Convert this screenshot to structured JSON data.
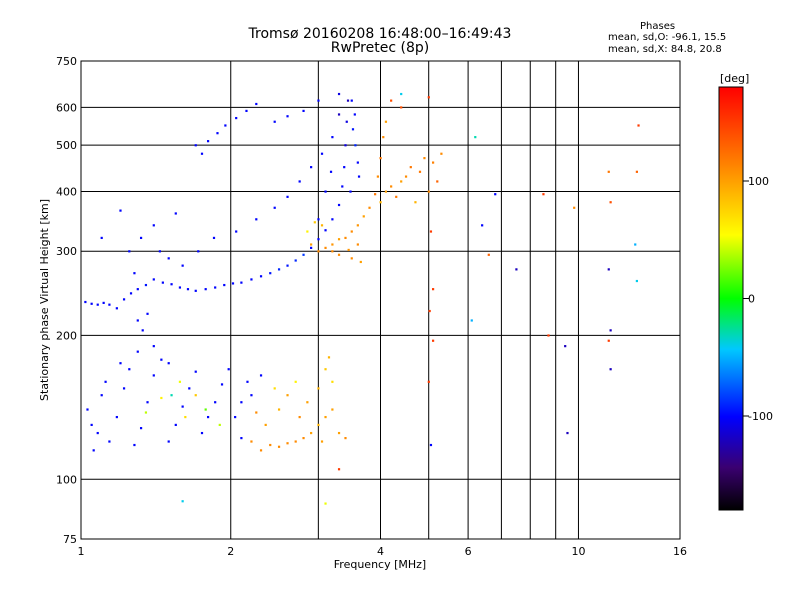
{
  "header": {
    "title_line1": "Tromsø 20160208 16:48:00–16:49:43",
    "title_line2": "RwPretec (8p)",
    "stats_title": "Phases",
    "stats_o": "mean, sd,O: -96.1, 15.5",
    "stats_x": "mean, sd,X: 84.8, 20.8"
  },
  "chart_data": {
    "type": "scatter",
    "xlabel": "Frequency [MHz]",
    "ylabel": "Stationary phase Virtual Height [km]",
    "x_scale": "log",
    "y_scale": "log",
    "xlim": [
      1,
      16
    ],
    "ylim": [
      75,
      750
    ],
    "x_ticks": [
      {
        "value": 1,
        "label": "1"
      },
      {
        "value": 2,
        "label": "2"
      },
      {
        "value": 4,
        "label": "4"
      },
      {
        "value": 6,
        "label": "6"
      },
      {
        "value": 10,
        "label": "10"
      },
      {
        "value": 16,
        "label": "16"
      }
    ],
    "x_minor_gridlines": [
      3,
      5,
      7,
      8,
      9
    ],
    "y_ticks": [
      {
        "value": 75,
        "label": "75"
      },
      {
        "value": 100,
        "label": "100"
      },
      {
        "value": 200,
        "label": "200"
      },
      {
        "value": 300,
        "label": "300"
      },
      {
        "value": 400,
        "label": "400"
      },
      {
        "value": 500,
        "label": "500"
      },
      {
        "value": 600,
        "label": "600"
      },
      {
        "value": 750,
        "label": "750"
      }
    ],
    "grid": true,
    "colorbar": {
      "label": "[deg]",
      "range": [
        -180,
        180
      ],
      "ticks": [
        {
          "value": 100,
          "label": "100"
        },
        {
          "value": 0,
          "label": "0"
        },
        {
          "value": -100,
          "label": "-100"
        }
      ]
    },
    "points": [
      {
        "x": 1.02,
        "y": 235,
        "phase": -100
      },
      {
        "x": 1.05,
        "y": 233,
        "phase": -100
      },
      {
        "x": 1.08,
        "y": 232,
        "phase": -100
      },
      {
        "x": 1.11,
        "y": 234,
        "phase": -100
      },
      {
        "x": 1.14,
        "y": 232,
        "phase": -100
      },
      {
        "x": 1.18,
        "y": 228,
        "phase": -100
      },
      {
        "x": 1.22,
        "y": 238,
        "phase": -100
      },
      {
        "x": 1.26,
        "y": 245,
        "phase": -100
      },
      {
        "x": 1.3,
        "y": 250,
        "phase": -100
      },
      {
        "x": 1.35,
        "y": 255,
        "phase": -95
      },
      {
        "x": 1.4,
        "y": 262,
        "phase": -100
      },
      {
        "x": 1.46,
        "y": 258,
        "phase": -100
      },
      {
        "x": 1.52,
        "y": 256,
        "phase": -100
      },
      {
        "x": 1.58,
        "y": 252,
        "phase": -100
      },
      {
        "x": 1.64,
        "y": 250,
        "phase": -100
      },
      {
        "x": 1.7,
        "y": 248,
        "phase": -100
      },
      {
        "x": 1.78,
        "y": 250,
        "phase": -100
      },
      {
        "x": 1.86,
        "y": 252,
        "phase": -100
      },
      {
        "x": 1.94,
        "y": 255,
        "phase": -100
      },
      {
        "x": 2.02,
        "y": 257,
        "phase": -100
      },
      {
        "x": 2.1,
        "y": 258,
        "phase": -100
      },
      {
        "x": 2.2,
        "y": 262,
        "phase": -100
      },
      {
        "x": 2.3,
        "y": 266,
        "phase": -100
      },
      {
        "x": 2.4,
        "y": 270,
        "phase": -95
      },
      {
        "x": 2.5,
        "y": 275,
        "phase": -90
      },
      {
        "x": 2.6,
        "y": 280,
        "phase": -95
      },
      {
        "x": 2.7,
        "y": 287,
        "phase": -90
      },
      {
        "x": 2.8,
        "y": 295,
        "phase": -85
      },
      {
        "x": 2.9,
        "y": 305,
        "phase": -100
      },
      {
        "x": 3.0,
        "y": 318,
        "phase": -100
      },
      {
        "x": 3.1,
        "y": 332,
        "phase": -100
      },
      {
        "x": 3.2,
        "y": 350,
        "phase": -100
      },
      {
        "x": 3.3,
        "y": 375,
        "phase": -100
      },
      {
        "x": 3.35,
        "y": 410,
        "phase": -100
      },
      {
        "x": 3.38,
        "y": 450,
        "phase": -100
      },
      {
        "x": 3.4,
        "y": 500,
        "phase": -110
      },
      {
        "x": 3.42,
        "y": 560,
        "phase": -110
      },
      {
        "x": 3.44,
        "y": 620,
        "phase": -120
      },
      {
        "x": 1.3,
        "y": 215,
        "phase": -100
      },
      {
        "x": 1.33,
        "y": 205,
        "phase": -100
      },
      {
        "x": 1.36,
        "y": 222,
        "phase": -100
      },
      {
        "x": 1.28,
        "y": 270,
        "phase": -100
      },
      {
        "x": 1.25,
        "y": 300,
        "phase": -100
      },
      {
        "x": 1.32,
        "y": 320,
        "phase": -100
      },
      {
        "x": 1.44,
        "y": 300,
        "phase": -100
      },
      {
        "x": 1.5,
        "y": 290,
        "phase": -100
      },
      {
        "x": 1.6,
        "y": 280,
        "phase": -100
      },
      {
        "x": 1.72,
        "y": 300,
        "phase": -100
      },
      {
        "x": 1.85,
        "y": 320,
        "phase": -100
      },
      {
        "x": 2.05,
        "y": 330,
        "phase": -100
      },
      {
        "x": 2.25,
        "y": 350,
        "phase": -100
      },
      {
        "x": 2.45,
        "y": 370,
        "phase": -100
      },
      {
        "x": 2.6,
        "y": 390,
        "phase": -100
      },
      {
        "x": 2.75,
        "y": 420,
        "phase": -100
      },
      {
        "x": 2.9,
        "y": 450,
        "phase": -100
      },
      {
        "x": 3.05,
        "y": 480,
        "phase": -100
      },
      {
        "x": 3.2,
        "y": 520,
        "phase": -100
      },
      {
        "x": 3.3,
        "y": 580,
        "phase": -120
      },
      {
        "x": 1.1,
        "y": 320,
        "phase": -100
      },
      {
        "x": 1.2,
        "y": 365,
        "phase": -100
      },
      {
        "x": 1.4,
        "y": 340,
        "phase": -100
      },
      {
        "x": 1.55,
        "y": 360,
        "phase": -100
      },
      {
        "x": 1.7,
        "y": 500,
        "phase": -100
      },
      {
        "x": 1.75,
        "y": 480,
        "phase": -100
      },
      {
        "x": 1.8,
        "y": 510,
        "phase": -100
      },
      {
        "x": 1.88,
        "y": 530,
        "phase": -100
      },
      {
        "x": 1.95,
        "y": 550,
        "phase": -100
      },
      {
        "x": 2.05,
        "y": 570,
        "phase": -100
      },
      {
        "x": 2.15,
        "y": 590,
        "phase": -100
      },
      {
        "x": 2.25,
        "y": 610,
        "phase": -100
      },
      {
        "x": 2.45,
        "y": 560,
        "phase": -100
      },
      {
        "x": 2.6,
        "y": 575,
        "phase": -100
      },
      {
        "x": 2.8,
        "y": 590,
        "phase": -100
      },
      {
        "x": 3.0,
        "y": 620,
        "phase": -100
      },
      {
        "x": 3.3,
        "y": 640,
        "phase": -110
      },
      {
        "x": 3.5,
        "y": 620,
        "phase": -100
      },
      {
        "x": 3.55,
        "y": 580,
        "phase": -100
      },
      {
        "x": 3.52,
        "y": 540,
        "phase": -95
      },
      {
        "x": 3.56,
        "y": 500,
        "phase": -90
      },
      {
        "x": 3.6,
        "y": 460,
        "phase": -100
      },
      {
        "x": 3.62,
        "y": 430,
        "phase": -100
      },
      {
        "x": 3.48,
        "y": 400,
        "phase": -100
      },
      {
        "x": 3.0,
        "y": 350,
        "phase": -100
      },
      {
        "x": 3.1,
        "y": 400,
        "phase": -100
      },
      {
        "x": 3.18,
        "y": 440,
        "phase": -100
      },
      {
        "x": 2.85,
        "y": 330,
        "phase": 60
      },
      {
        "x": 2.95,
        "y": 345,
        "phase": 80
      },
      {
        "x": 3.05,
        "y": 340,
        "phase": 90
      },
      {
        "x": 2.9,
        "y": 310,
        "phase": 100
      },
      {
        "x": 3.0,
        "y": 300,
        "phase": 110
      },
      {
        "x": 3.1,
        "y": 305,
        "phase": 110
      },
      {
        "x": 3.2,
        "y": 310,
        "phase": 105
      },
      {
        "x": 3.3,
        "y": 318,
        "phase": 100
      },
      {
        "x": 3.4,
        "y": 320,
        "phase": 110
      },
      {
        "x": 3.5,
        "y": 330,
        "phase": 110
      },
      {
        "x": 3.6,
        "y": 340,
        "phase": 105
      },
      {
        "x": 3.7,
        "y": 355,
        "phase": 100
      },
      {
        "x": 3.8,
        "y": 370,
        "phase": 110
      },
      {
        "x": 3.9,
        "y": 395,
        "phase": 120
      },
      {
        "x": 3.95,
        "y": 430,
        "phase": 110
      },
      {
        "x": 4.0,
        "y": 470,
        "phase": 120
      },
      {
        "x": 4.05,
        "y": 520,
        "phase": 110
      },
      {
        "x": 4.1,
        "y": 560,
        "phase": 100
      },
      {
        "x": 4.0,
        "y": 380,
        "phase": 90
      },
      {
        "x": 4.1,
        "y": 400,
        "phase": 100
      },
      {
        "x": 4.2,
        "y": 410,
        "phase": 110
      },
      {
        "x": 4.3,
        "y": 390,
        "phase": 120
      },
      {
        "x": 4.4,
        "y": 420,
        "phase": 100
      },
      {
        "x": 4.5,
        "y": 430,
        "phase": 110
      },
      {
        "x": 4.6,
        "y": 450,
        "phase": 120
      },
      {
        "x": 4.8,
        "y": 440,
        "phase": 120
      },
      {
        "x": 4.9,
        "y": 470,
        "phase": 110
      },
      {
        "x": 5.1,
        "y": 460,
        "phase": 115
      },
      {
        "x": 5.2,
        "y": 420,
        "phase": 130
      },
      {
        "x": 5.3,
        "y": 480,
        "phase": 110
      },
      {
        "x": 5.0,
        "y": 400,
        "phase": 110
      },
      {
        "x": 4.7,
        "y": 380,
        "phase": 90
      },
      {
        "x": 3.2,
        "y": 300,
        "phase": 110
      },
      {
        "x": 3.3,
        "y": 295,
        "phase": 110
      },
      {
        "x": 3.45,
        "y": 302,
        "phase": 105
      },
      {
        "x": 3.6,
        "y": 310,
        "phase": 110
      },
      {
        "x": 3.65,
        "y": 285,
        "phase": 100
      },
      {
        "x": 3.5,
        "y": 290,
        "phase": 110
      },
      {
        "x": 1.03,
        "y": 140,
        "phase": -100
      },
      {
        "x": 1.05,
        "y": 130,
        "phase": -100
      },
      {
        "x": 1.06,
        "y": 115,
        "phase": -100
      },
      {
        "x": 1.08,
        "y": 125,
        "phase": -100
      },
      {
        "x": 1.1,
        "y": 150,
        "phase": -100
      },
      {
        "x": 1.12,
        "y": 160,
        "phase": -100
      },
      {
        "x": 1.14,
        "y": 120,
        "phase": -100
      },
      {
        "x": 1.18,
        "y": 135,
        "phase": -100
      },
      {
        "x": 1.22,
        "y": 155,
        "phase": -100
      },
      {
        "x": 1.25,
        "y": 170,
        "phase": -100
      },
      {
        "x": 1.28,
        "y": 118,
        "phase": -100
      },
      {
        "x": 1.32,
        "y": 128,
        "phase": -100
      },
      {
        "x": 1.36,
        "y": 145,
        "phase": -100
      },
      {
        "x": 1.4,
        "y": 165,
        "phase": -100
      },
      {
        "x": 1.45,
        "y": 178,
        "phase": -100
      },
      {
        "x": 1.5,
        "y": 120,
        "phase": -100
      },
      {
        "x": 1.55,
        "y": 130,
        "phase": -100
      },
      {
        "x": 1.6,
        "y": 142,
        "phase": -100
      },
      {
        "x": 1.65,
        "y": 155,
        "phase": -100
      },
      {
        "x": 1.7,
        "y": 168,
        "phase": -100
      },
      {
        "x": 1.75,
        "y": 125,
        "phase": -100
      },
      {
        "x": 1.8,
        "y": 135,
        "phase": -100
      },
      {
        "x": 1.86,
        "y": 145,
        "phase": -100
      },
      {
        "x": 1.92,
        "y": 158,
        "phase": -100
      },
      {
        "x": 1.98,
        "y": 170,
        "phase": -100
      },
      {
        "x": 2.04,
        "y": 135,
        "phase": -100
      },
      {
        "x": 2.1,
        "y": 145,
        "phase": -100
      },
      {
        "x": 2.16,
        "y": 160,
        "phase": -100
      },
      {
        "x": 1.2,
        "y": 175,
        "phase": -100
      },
      {
        "x": 1.3,
        "y": 185,
        "phase": -100
      },
      {
        "x": 1.4,
        "y": 190,
        "phase": -100
      },
      {
        "x": 1.5,
        "y": 175,
        "phase": -100
      },
      {
        "x": 1.35,
        "y": 138,
        "phase": 40
      },
      {
        "x": 1.45,
        "y": 148,
        "phase": 60
      },
      {
        "x": 1.58,
        "y": 160,
        "phase": 50
      },
      {
        "x": 1.7,
        "y": 150,
        "phase": 80
      },
      {
        "x": 1.78,
        "y": 140,
        "phase": 20
      },
      {
        "x": 1.9,
        "y": 130,
        "phase": 40
      },
      {
        "x": 1.62,
        "y": 135,
        "phase": 70
      },
      {
        "x": 1.52,
        "y": 150,
        "phase": -30
      },
      {
        "x": 2.2,
        "y": 120,
        "phase": 110
      },
      {
        "x": 2.3,
        "y": 115,
        "phase": 110
      },
      {
        "x": 2.4,
        "y": 118,
        "phase": 110
      },
      {
        "x": 2.5,
        "y": 117,
        "phase": 110
      },
      {
        "x": 2.6,
        "y": 119,
        "phase": 110
      },
      {
        "x": 2.7,
        "y": 120,
        "phase": 110
      },
      {
        "x": 2.8,
        "y": 122,
        "phase": 110
      },
      {
        "x": 2.9,
        "y": 125,
        "phase": 100
      },
      {
        "x": 3.0,
        "y": 130,
        "phase": 90
      },
      {
        "x": 3.1,
        "y": 135,
        "phase": 100
      },
      {
        "x": 3.2,
        "y": 140,
        "phase": 100
      },
      {
        "x": 2.35,
        "y": 130,
        "phase": 100
      },
      {
        "x": 2.5,
        "y": 140,
        "phase": 90
      },
      {
        "x": 2.6,
        "y": 150,
        "phase": 100
      },
      {
        "x": 2.75,
        "y": 135,
        "phase": 110
      },
      {
        "x": 2.85,
        "y": 145,
        "phase": 100
      },
      {
        "x": 3.0,
        "y": 155,
        "phase": 90
      },
      {
        "x": 3.1,
        "y": 170,
        "phase": 80
      },
      {
        "x": 3.15,
        "y": 180,
        "phase": 90
      },
      {
        "x": 2.45,
        "y": 155,
        "phase": 70
      },
      {
        "x": 2.7,
        "y": 160,
        "phase": 60
      },
      {
        "x": 3.2,
        "y": 160,
        "phase": 70
      },
      {
        "x": 2.25,
        "y": 138,
        "phase": 110
      },
      {
        "x": 3.05,
        "y": 120,
        "phase": 100
      },
      {
        "x": 3.3,
        "y": 125,
        "phase": 100
      },
      {
        "x": 3.4,
        "y": 122,
        "phase": 110
      },
      {
        "x": 2.1,
        "y": 122,
        "phase": -100
      },
      {
        "x": 2.2,
        "y": 150,
        "phase": -100
      },
      {
        "x": 2.3,
        "y": 165,
        "phase": -100
      },
      {
        "x": 4.2,
        "y": 620,
        "phase": 140
      },
      {
        "x": 4.4,
        "y": 600,
        "phase": 140
      },
      {
        "x": 5.0,
        "y": 630,
        "phase": 150
      },
      {
        "x": 5.05,
        "y": 330,
        "phase": 150
      },
      {
        "x": 5.1,
        "y": 250,
        "phase": 150
      },
      {
        "x": 5.02,
        "y": 225,
        "phase": 150
      },
      {
        "x": 5.1,
        "y": 195,
        "phase": 150
      },
      {
        "x": 5.0,
        "y": 160,
        "phase": 150
      },
      {
        "x": 5.05,
        "y": 118,
        "phase": -100
      },
      {
        "x": 6.2,
        "y": 520,
        "phase": -30
      },
      {
        "x": 6.4,
        "y": 340,
        "phase": -100
      },
      {
        "x": 6.6,
        "y": 295,
        "phase": 130
      },
      {
        "x": 6.1,
        "y": 215,
        "phase": -50
      },
      {
        "x": 6.8,
        "y": 395,
        "phase": -100
      },
      {
        "x": 7.5,
        "y": 275,
        "phase": -120
      },
      {
        "x": 8.5,
        "y": 395,
        "phase": 150
      },
      {
        "x": 8.7,
        "y": 200,
        "phase": 150
      },
      {
        "x": 9.4,
        "y": 190,
        "phase": -120
      },
      {
        "x": 9.8,
        "y": 370,
        "phase": 110
      },
      {
        "x": 9.5,
        "y": 125,
        "phase": -120
      },
      {
        "x": 11.5,
        "y": 440,
        "phase": 120
      },
      {
        "x": 11.6,
        "y": 380,
        "phase": 140
      },
      {
        "x": 11.5,
        "y": 275,
        "phase": -120
      },
      {
        "x": 11.6,
        "y": 205,
        "phase": -120
      },
      {
        "x": 11.5,
        "y": 195,
        "phase": 150
      },
      {
        "x": 11.6,
        "y": 170,
        "phase": -120
      },
      {
        "x": 13.2,
        "y": 550,
        "phase": 150
      },
      {
        "x": 13.1,
        "y": 440,
        "phase": 130
      },
      {
        "x": 13.0,
        "y": 310,
        "phase": -50
      },
      {
        "x": 13.1,
        "y": 260,
        "phase": -40
      },
      {
        "x": 4.4,
        "y": 640,
        "phase": -40
      },
      {
        "x": 3.3,
        "y": 105,
        "phase": 150
      },
      {
        "x": 1.6,
        "y": 90,
        "phase": -40
      },
      {
        "x": 3.1,
        "y": 89,
        "phase": 50
      }
    ]
  }
}
